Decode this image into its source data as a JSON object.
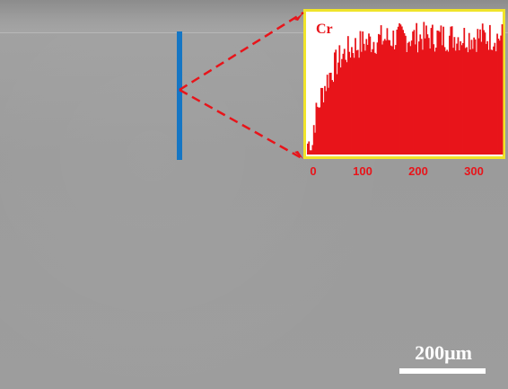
{
  "image": {
    "background_color": "#9c9c9c",
    "line_color": "#1576c4",
    "accent_color": "#e8141a",
    "inset_border_color": "#f0e42a"
  },
  "inset": {
    "element_label": "Cr",
    "x_ticks": [
      "0",
      "100",
      "200",
      "300"
    ]
  },
  "scale_bar": {
    "label": "200μm"
  },
  "chart_data": {
    "type": "bar",
    "title": "",
    "xlabel": "",
    "ylabel": "",
    "xlim": [
      -10,
      355
    ],
    "series": [
      {
        "name": "Cr"
      }
    ]
  }
}
